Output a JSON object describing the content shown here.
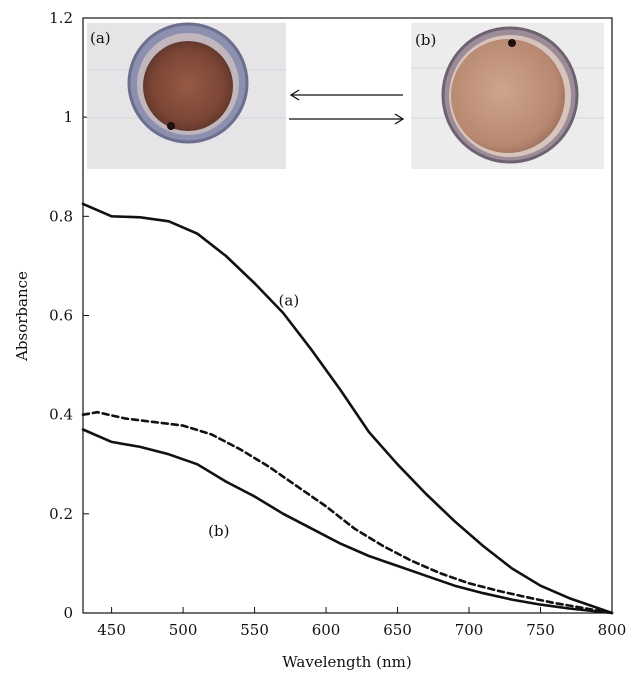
{
  "chart_data": {
    "type": "line",
    "title": "",
    "xlabel": "Wavelength (nm)",
    "ylabel": "Absorbance",
    "xlim": [
      430,
      800
    ],
    "ylim": [
      0,
      1.2
    ],
    "xticks": [
      450,
      500,
      550,
      600,
      650,
      700,
      750,
      800
    ],
    "yticks": [
      0,
      0.2,
      0.4,
      0.6,
      0.8,
      1,
      1.2
    ],
    "ytick_labels": [
      "0",
      "0.2",
      "0.4",
      "0.6",
      "0.8",
      "1",
      "1.2"
    ],
    "grid": false,
    "legend": "none",
    "series": [
      {
        "style": "solid",
        "x": [
          430,
          450,
          470,
          490,
          510,
          530,
          550,
          570,
          590,
          610,
          630,
          650,
          670,
          690,
          710,
          730,
          750,
          770,
          790,
          800
        ],
        "values": [
          0.825,
          0.8,
          0.798,
          0.79,
          0.765,
          0.72,
          0.665,
          0.605,
          0.53,
          0.45,
          0.365,
          0.3,
          0.24,
          0.185,
          0.135,
          0.09,
          0.055,
          0.03,
          0.01,
          0.0
        ]
      },
      {
        "style": "dashed",
        "x": [
          430,
          440,
          460,
          480,
          500,
          520,
          540,
          560,
          580,
          600,
          620,
          640,
          660,
          680,
          700,
          720,
          740,
          760,
          780,
          800
        ],
        "values": [
          0.4,
          0.405,
          0.392,
          0.385,
          0.378,
          0.36,
          0.33,
          0.295,
          0.255,
          0.215,
          0.17,
          0.135,
          0.105,
          0.08,
          0.06,
          0.045,
          0.032,
          0.02,
          0.01,
          0.0
        ]
      },
      {
        "style": "solid",
        "x": [
          430,
          450,
          470,
          490,
          510,
          530,
          550,
          570,
          590,
          610,
          630,
          650,
          670,
          690,
          710,
          730,
          750,
          770,
          790,
          800
        ],
        "values": [
          0.37,
          0.345,
          0.335,
          0.32,
          0.3,
          0.265,
          0.235,
          0.2,
          0.17,
          0.14,
          0.115,
          0.095,
          0.075,
          0.055,
          0.04,
          0.027,
          0.017,
          0.009,
          0.003,
          0.0
        ]
      }
    ],
    "annotations": [
      {
        "text": "(a)",
        "x": 574,
        "y": 0.62
      },
      {
        "text": "(b)",
        "x": 525,
        "y": 0.155
      }
    ]
  },
  "insets": {
    "left": {
      "label": "(a)",
      "color_main": "#8e5a45",
      "color_rim": "#7a7ea0"
    },
    "right": {
      "label": "(b)",
      "color_main": "#c49880",
      "color_rim": "#7a6e80"
    }
  },
  "colors": {
    "line": "#111111",
    "background": "#ffffff"
  }
}
